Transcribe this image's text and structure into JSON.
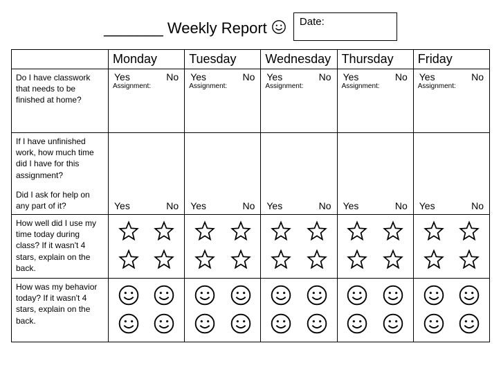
{
  "title_blank": "_______",
  "title_text": "Weekly Report",
  "date_label": "Date:",
  "days": [
    "Monday",
    "Tuesday",
    "Wednesday",
    "Thursday",
    "Friday"
  ],
  "row1": {
    "question": "Do I have classwork that needs to be finished at home?",
    "yes": "Yes",
    "no": "No",
    "assignment_label": "Assignment:"
  },
  "row2": {
    "question_top": "If I have unfinished work, how much time did I have for this assignment?",
    "question_bottom": "Did I ask for help on any part of it?",
    "yes": "Yes",
    "no": "No"
  },
  "row3": {
    "question": "How well did I use my time today during class? If it wasn't 4 stars, explain on the back."
  },
  "row4": {
    "question": "How was my behavior today? If it wasn't 4 stars, explain on the back."
  },
  "colors": {
    "stroke": "#000000",
    "background": "#ffffff"
  }
}
